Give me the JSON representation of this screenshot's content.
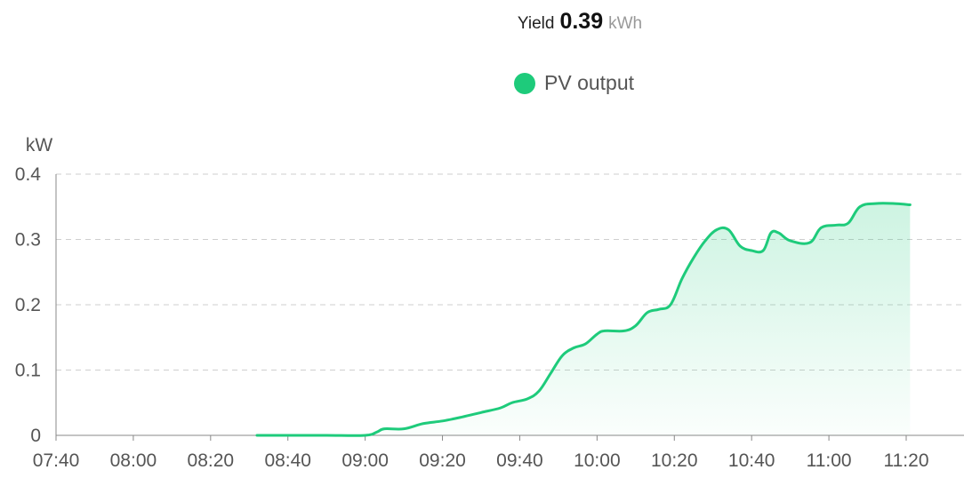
{
  "header": {
    "yield_label": "Yield",
    "yield_value": "0.39",
    "yield_unit": "kWh"
  },
  "legend": {
    "label": "PV output",
    "color": "#1ecb7b"
  },
  "chart_data": {
    "type": "area",
    "ylabel": "kW",
    "ylim": [
      0,
      0.4
    ],
    "yticks": [
      0,
      0.1,
      0.2,
      0.3,
      0.4
    ],
    "ytick_labels": [
      "0",
      "0.1",
      "0.2",
      "0.3",
      "0.4"
    ],
    "xlim": [
      "07:40",
      "11:35"
    ],
    "xticks": [
      "07:40",
      "08:00",
      "08:20",
      "08:40",
      "09:00",
      "09:20",
      "09:40",
      "10:00",
      "10:20",
      "10:40",
      "11:00",
      "11:20"
    ],
    "grid": true,
    "legend_position": "top-center",
    "series": [
      {
        "name": "PV output",
        "color": "#1ecb7b",
        "points": [
          [
            "08:32",
            0.0
          ],
          [
            "08:40",
            0.0
          ],
          [
            "08:50",
            0.0
          ],
          [
            "09:00",
            0.0
          ],
          [
            "09:03",
            0.005
          ],
          [
            "09:05",
            0.01
          ],
          [
            "09:10",
            0.01
          ],
          [
            "09:15",
            0.018
          ],
          [
            "09:20",
            0.022
          ],
          [
            "09:25",
            0.028
          ],
          [
            "09:30",
            0.035
          ],
          [
            "09:35",
            0.042
          ],
          [
            "09:38",
            0.05
          ],
          [
            "09:42",
            0.056
          ],
          [
            "09:45",
            0.068
          ],
          [
            "09:48",
            0.095
          ],
          [
            "09:51",
            0.122
          ],
          [
            "09:54",
            0.134
          ],
          [
            "09:57",
            0.14
          ],
          [
            "10:00",
            0.155
          ],
          [
            "10:02",
            0.16
          ],
          [
            "10:07",
            0.16
          ],
          [
            "10:10",
            0.168
          ],
          [
            "10:13",
            0.188
          ],
          [
            "10:16",
            0.193
          ],
          [
            "10:19",
            0.2
          ],
          [
            "10:22",
            0.24
          ],
          [
            "10:25",
            0.272
          ],
          [
            "10:28",
            0.298
          ],
          [
            "10:31",
            0.315
          ],
          [
            "10:34",
            0.315
          ],
          [
            "10:37",
            0.29
          ],
          [
            "10:40",
            0.283
          ],
          [
            "10:43",
            0.283
          ],
          [
            "10:45",
            0.31
          ],
          [
            "10:47",
            0.31
          ],
          [
            "10:50",
            0.298
          ],
          [
            "10:55",
            0.295
          ],
          [
            "10:58",
            0.318
          ],
          [
            "11:02",
            0.322
          ],
          [
            "11:05",
            0.325
          ],
          [
            "11:08",
            0.35
          ],
          [
            "11:12",
            0.355
          ],
          [
            "11:17",
            0.355
          ],
          [
            "11:21",
            0.353
          ]
        ]
      }
    ]
  }
}
